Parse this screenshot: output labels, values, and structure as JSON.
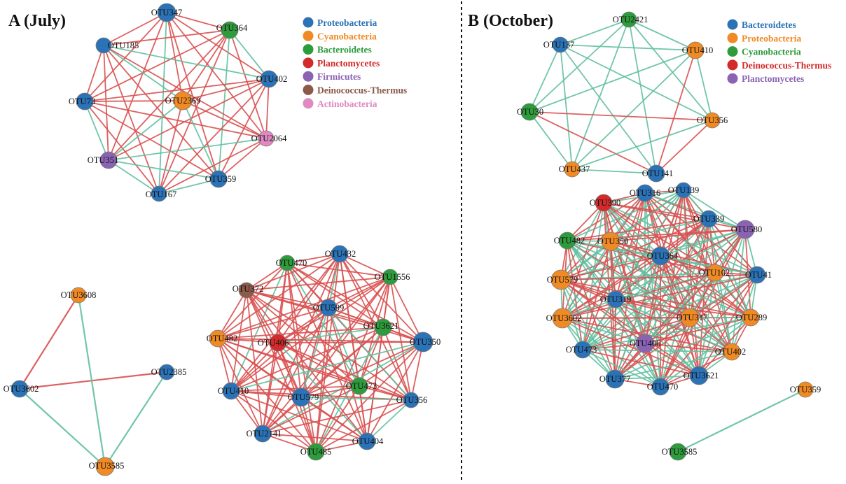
{
  "colors": {
    "positive_edge": "#d95050",
    "negative_edge": "#62c0a0",
    "blue": "#2b72b6",
    "orange": "#f08a24",
    "green": "#2e9b3c",
    "red": "#d32b2b",
    "purple": "#8a63b3",
    "brown": "#8b5a4a",
    "pink": "#e089c2",
    "divider": "#111111"
  },
  "panels": [
    {
      "title": "A (July)",
      "legend": [
        {
          "label": "Proteobacteria",
          "color": "#2b72b6"
        },
        {
          "label": "Cyanobacteria",
          "color": "#f08a24"
        },
        {
          "label": "Bacteroidetes",
          "color": "#2e9b3c"
        },
        {
          "label": "Planctomycetes",
          "color": "#d32b2b"
        },
        {
          "label": "Firmicutes",
          "color": "#8a63b3"
        },
        {
          "label": "Deinococcus-Thermus",
          "color": "#8b5a4a"
        },
        {
          "label": "Actinobacteria",
          "color": "#e089c2"
        }
      ],
      "networks": [
        {
          "nodes": [
            "OTU347",
            "OTU364",
            "OTU185",
            "OTU402",
            "OTU73",
            "OTU2369",
            "OTU2064",
            "OTU351",
            "OTU359",
            "OTU167"
          ],
          "colors": [
            "#2b72b6",
            "#2e9b3c",
            "#2b72b6",
            "#2b72b6",
            "#2b72b6",
            "#f08a24",
            "#e089c2",
            "#8a63b3",
            "#2b72b6",
            "#2b72b6"
          ],
          "mix": 0.62
        },
        {
          "nodes": [
            "OTU3608",
            "OTU2385",
            "OTU3602",
            "OTU3585"
          ],
          "colors": [
            "#f08a24",
            "#2b72b6",
            "#2b72b6",
            "#f08a24"
          ],
          "edges": [
            [
              0,
              2,
              "pos"
            ],
            [
              2,
              1,
              "pos"
            ],
            [
              0,
              3,
              "neg"
            ],
            [
              1,
              3,
              "neg"
            ],
            [
              2,
              3,
              "neg"
            ]
          ]
        },
        {
          "nodes": [
            "OTU470",
            "OTU432",
            "OTU1556",
            "OTU372",
            "OTU599",
            "OTU3621",
            "OTU482",
            "OTU406",
            "OTU350",
            "OTU473",
            "OTU410",
            "OTU579",
            "OTU356",
            "OTU2141",
            "OTU404",
            "OTU485"
          ],
          "colors": [
            "#2e9b3c",
            "#2b72b6",
            "#2e9b3c",
            "#8b5a4a",
            "#2b72b6",
            "#2e9b3c",
            "#f08a24",
            "#d32b2b",
            "#2b72b6",
            "#2e9b3c",
            "#2b72b6",
            "#2b72b6",
            "#2b72b6",
            "#2b72b6",
            "#2b72b6",
            "#2e9b3c"
          ],
          "mix": 0.85
        }
      ]
    },
    {
      "title": "B (October)",
      "legend": [
        {
          "label": "Bacteroidetes",
          "color": "#2b72b6"
        },
        {
          "label": "Proteobacteria",
          "color": "#f08a24"
        },
        {
          "label": "Cyanobacteria",
          "color": "#2e9b3c"
        },
        {
          "label": "Deinococcus-Thermus",
          "color": "#d32b2b"
        },
        {
          "label": "Planctomycetes",
          "color": "#8a63b3"
        }
      ],
      "networks": [
        {
          "nodes": [
            "OTU2421",
            "OTU137",
            "OTU410",
            "OTU30",
            "OTU356",
            "OTU437",
            "OTU141"
          ],
          "colors": [
            "#2e9b3c",
            "#2b72b6",
            "#f08a24",
            "#2e9b3c",
            "#f08a24",
            "#f08a24",
            "#2b72b6"
          ],
          "mix": 0.28
        },
        {
          "nodes": [
            "OTU316",
            "OTU139",
            "OTU390",
            "OTU339",
            "OTU580",
            "OTU482",
            "OTU350",
            "OTU364",
            "OTU579",
            "OTU102",
            "OTU41",
            "OTU319",
            "OTU3602",
            "OTU317",
            "OTU289",
            "OTU406",
            "OTU473",
            "OTU402",
            "OTU377",
            "OTU470",
            "OTU3621"
          ],
          "colors": [
            "#2b72b6",
            "#2b72b6",
            "#d32b2b",
            "#2b72b6",
            "#8a63b3",
            "#2e9b3c",
            "#f08a24",
            "#2b72b6",
            "#f08a24",
            "#f08a24",
            "#2b72b6",
            "#2b72b6",
            "#f08a24",
            "#f08a24",
            "#f08a24",
            "#8a63b3",
            "#2b72b6",
            "#f08a24",
            "#2b72b6",
            "#2b72b6",
            "#2b72b6"
          ],
          "mix": 0.55
        },
        {
          "nodes": [
            "OTU359",
            "OTU3585"
          ],
          "colors": [
            "#f08a24",
            "#2e9b3c"
          ],
          "edges": [
            [
              0,
              1,
              "neg"
            ]
          ]
        }
      ]
    }
  ]
}
